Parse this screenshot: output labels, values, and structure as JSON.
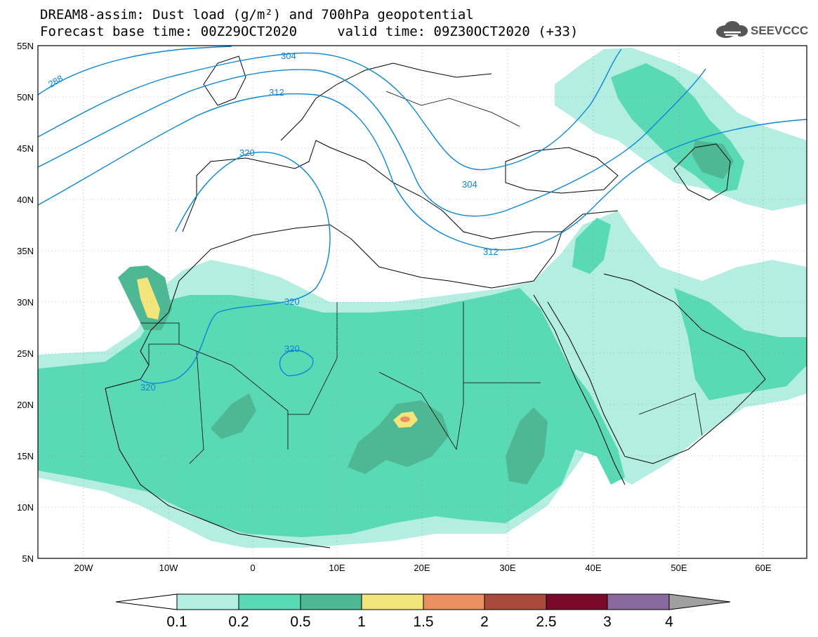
{
  "header": {
    "title_line1": "DREAM8-assim: Dust load (g/m²) and 700hPa geopotential",
    "title_line2": "Forecast base time: 00Z29OCT2020     valid time: 09Z30OCT2020 (+33)",
    "logo_text": "SEEVCCC"
  },
  "map": {
    "lat_labels": [
      "55N",
      "50N",
      "45N",
      "40N",
      "35N",
      "30N",
      "25N",
      "20N",
      "15N",
      "10N",
      "5N"
    ],
    "lon_labels": [
      "20W",
      "10W",
      "0",
      "10E",
      "20E",
      "30E",
      "40E",
      "50E",
      "60E"
    ],
    "contour_labels": [
      "288",
      "304",
      "312",
      "320",
      "304",
      "312",
      "320",
      "320",
      "320"
    ],
    "colors": {
      "frame": "#000000",
      "contour": "#0a86d8",
      "coast": "#000000"
    }
  },
  "legend": {
    "labels": [
      "0.1",
      "0.2",
      "0.5",
      "1",
      "1.5",
      "2",
      "2.5",
      "3",
      "4"
    ],
    "colors": [
      "#ffffff",
      "#b4ede1",
      "#5ad9b5",
      "#4db893",
      "#f2e57c",
      "#e89060",
      "#a84a3c",
      "#7a0a2a",
      "#8a6a9e",
      "#a0a0a0"
    ]
  }
}
